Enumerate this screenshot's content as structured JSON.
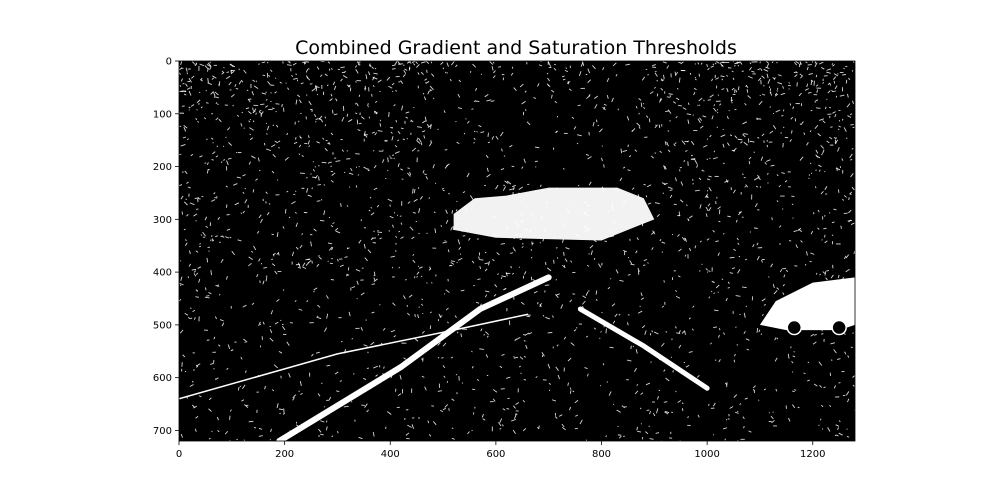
{
  "chart_data": {
    "type": "image",
    "title": "Combined Gradient and Saturation Thresholds",
    "xlabel": "",
    "ylabel": "",
    "xlim": [
      0,
      1280
    ],
    "ylim": [
      720,
      0
    ],
    "x_ticks": [
      0,
      200,
      400,
      600,
      800,
      1000,
      1200
    ],
    "y_ticks": [
      0,
      100,
      200,
      300,
      400,
      500,
      600,
      700
    ],
    "image": {
      "description_colors": {
        "background": "#000000",
        "foreground": "#ffffff"
      },
      "width": 1280,
      "height": 720,
      "lane_lines": [
        {
          "name": "left-lane-line",
          "points": [
            [
              190,
              720
            ],
            [
              420,
              580
            ],
            [
              570,
              470
            ],
            [
              700,
              410
            ]
          ]
        },
        {
          "name": "right-lane-line",
          "points": [
            [
              1000,
              620
            ],
            [
              880,
              540
            ],
            [
              760,
              470
            ]
          ]
        },
        {
          "name": "left-road-edge",
          "points": [
            [
              0,
              640
            ],
            [
              300,
              555
            ],
            [
              520,
              510
            ],
            [
              660,
              480
            ]
          ]
        }
      ],
      "sky_region": {
        "points": [
          [
            520,
            290
          ],
          [
            560,
            260
          ],
          [
            620,
            255
          ],
          [
            700,
            240
          ],
          [
            830,
            240
          ],
          [
            880,
            260
          ],
          [
            900,
            300
          ],
          [
            800,
            340
          ],
          [
            600,
            335
          ],
          [
            520,
            320
          ]
        ]
      },
      "car_region": {
        "points": [
          [
            1100,
            500
          ],
          [
            1130,
            455
          ],
          [
            1200,
            420
          ],
          [
            1280,
            410
          ],
          [
            1280,
            500
          ],
          [
            1250,
            510
          ],
          [
            1150,
            510
          ]
        ]
      }
    }
  }
}
